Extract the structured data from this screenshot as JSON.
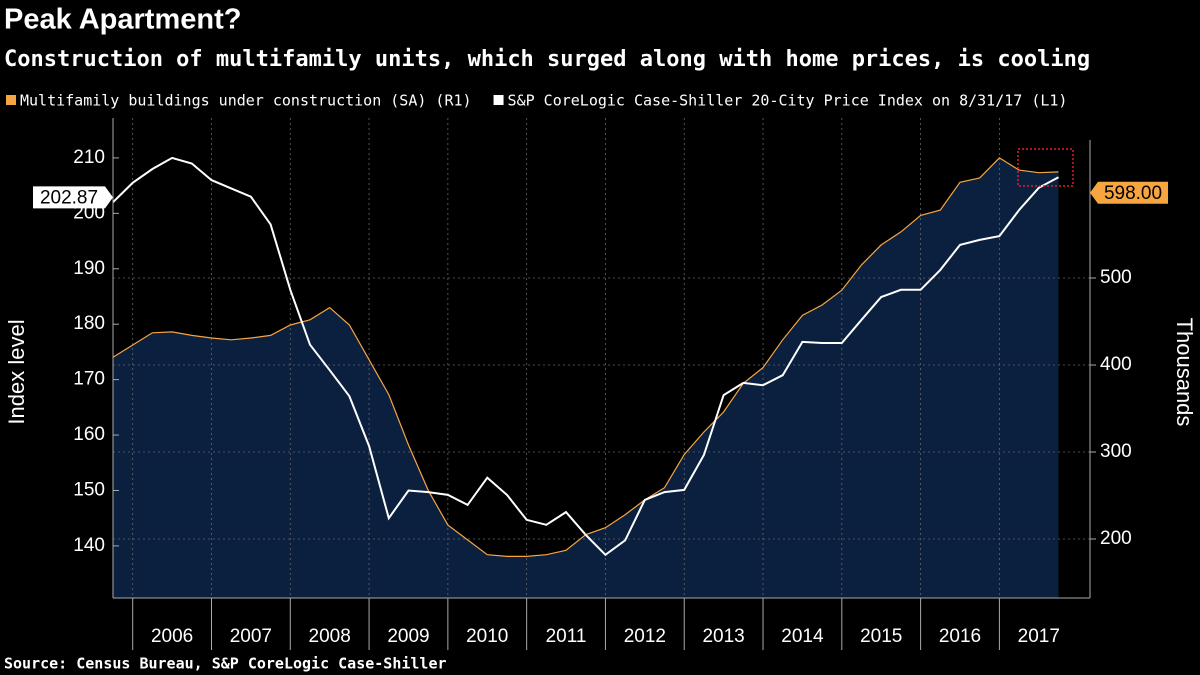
{
  "chart_data": {
    "type": "line",
    "title": "Peak Apartment?",
    "subtitle": "Construction of multifamily units, which surged along with home prices, is cooling",
    "source": "Source: Census Bureau, S&P CoreLogic Case-Shiller",
    "ylabel": "Index level",
    "y2label": "Thousands",
    "x": [
      2005.75,
      2006,
      2006.25,
      2006.5,
      2006.75,
      2007,
      2007.25,
      2007.5,
      2007.75,
      2008,
      2008.25,
      2008.5,
      2008.75,
      2009,
      2009.25,
      2009.5,
      2009.75,
      2010,
      2010.25,
      2010.5,
      2010.75,
      2011,
      2011.25,
      2011.5,
      2011.75,
      2012,
      2012.25,
      2012.5,
      2012.75,
      2013,
      2013.25,
      2013.5,
      2013.75,
      2014,
      2014.25,
      2014.5,
      2014.75,
      2015,
      2015.25,
      2015.5,
      2015.75,
      2016,
      2016.25,
      2016.5,
      2016.75,
      2017,
      2017.25,
      2017.5,
      2017.75
    ],
    "series": [
      {
        "name": "Multifamily buildings under construction (SA) (R1)",
        "color": "#f7a541",
        "axis": "y2",
        "area": true,
        "values": [
          409,
          423,
          437,
          438,
          434,
          431,
          429,
          431,
          434,
          446,
          452,
          466,
          446,
          406,
          366,
          308,
          256,
          216,
          199,
          182,
          180,
          180,
          182,
          187,
          205,
          213,
          228,
          245,
          259,
          297,
          323,
          346,
          379,
          397,
          429,
          457,
          469,
          486,
          515,
          538,
          553,
          572,
          578,
          610,
          615,
          638,
          624,
          621,
          622
        ]
      },
      {
        "name": "S&P CoreLogic Case-Shiller 20-City Price Index on 8/31/17 (L1)",
        "color": "#ffffff",
        "axis": "y",
        "values": [
          202,
          205.5,
          208,
          210,
          209,
          206,
          204.5,
          203,
          198,
          186.2,
          176.3,
          171.7,
          167,
          158,
          145,
          150,
          149.7,
          149.2,
          147.4,
          152.3,
          149.2,
          144.7,
          143.8,
          146.1,
          142,
          138.4,
          141,
          148.3,
          149.7,
          150.1,
          156.4,
          167.2,
          169.4,
          169,
          170.8,
          176.8,
          176.6,
          176.6,
          180.8,
          184.9,
          186.2,
          186.2,
          189.8,
          194.3,
          195.2,
          195.9,
          200.6,
          204.6,
          206.5
        ]
      }
    ],
    "annotations": [
      {
        "value": 202.87,
        "label": "202.87",
        "axis": "y"
      },
      {
        "value": 598,
        "label": "598.00",
        "axis": "y2"
      }
    ],
    "xlim": [
      2005.75,
      2018.15
    ],
    "xticks": [
      2006,
      2007,
      2008,
      2009,
      2010,
      2011,
      2012,
      2013,
      2014,
      2015,
      2016,
      2017
    ],
    "ylim": [
      130.6,
      217.2
    ],
    "yticks": [
      140,
      150,
      160,
      170,
      180,
      190,
      200,
      210
    ],
    "y2lim": [
      132.2,
      683.9
    ],
    "y2ticks": [
      200,
      300,
      400,
      500
    ],
    "grid": true,
    "area_color": "#0b1f3e"
  }
}
